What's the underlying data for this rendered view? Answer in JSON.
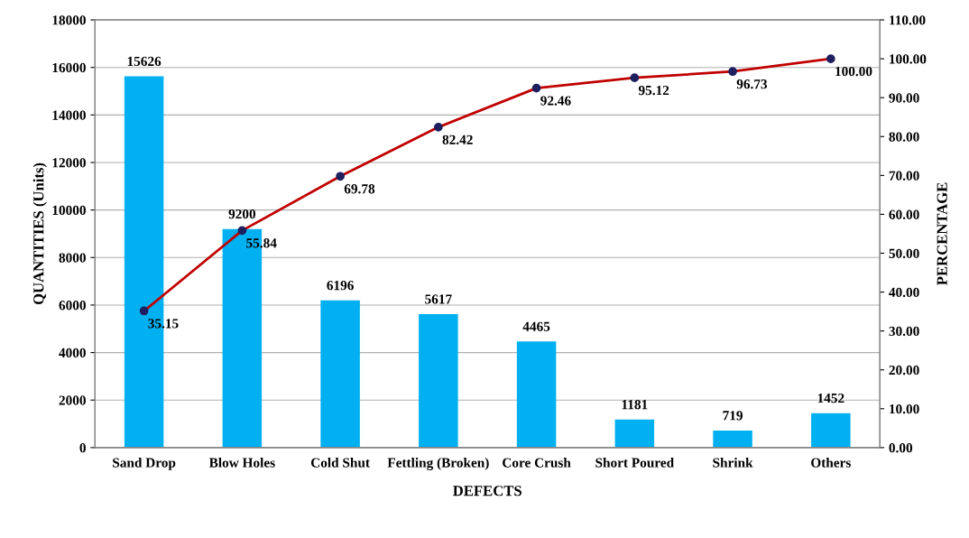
{
  "chart_data": {
    "type": "bar",
    "xlabel": "DEFECTS",
    "ylabel": "QUANTITIES (Units)",
    "y2label": "PERCENTAGE",
    "categories": [
      "Sand Drop",
      "Blow Holes",
      "Cold Shut",
      "Fettling (Broken)",
      "Core Crush",
      "Short Poured",
      "Shrink",
      "Others"
    ],
    "series": [
      {
        "color": "#00b0f0",
        "values": [
          15626,
          9200,
          6196,
          5617,
          4465,
          1181,
          719,
          1452
        ],
        "value_labels": [
          "15626",
          "9200",
          "6196",
          "5617",
          "4465",
          "1181",
          "719",
          "1452"
        ]
      },
      {
        "type": "line",
        "axis": "y2",
        "color": "#c00000",
        "marker": "circle",
        "values": [
          35.15,
          55.84,
          69.78,
          82.42,
          92.46,
          95.12,
          96.73,
          100.0
        ],
        "value_labels": [
          "35.15",
          "55.84",
          "69.78",
          "82.42",
          "92.46",
          "95.12",
          "96.73",
          "100.00"
        ]
      }
    ],
    "ylim": [
      0,
      18000
    ],
    "yticks": [
      0,
      2000,
      4000,
      6000,
      8000,
      10000,
      12000,
      14000,
      16000,
      18000
    ],
    "y2lim": [
      0,
      110
    ],
    "y2ticks": [
      {
        "value": 0,
        "label": "0.00"
      },
      {
        "value": 10,
        "label": "10.00"
      },
      {
        "value": 20,
        "label": "20.00"
      },
      {
        "value": 30,
        "label": "30.00"
      },
      {
        "value": 40,
        "label": "40.00"
      },
      {
        "value": 50,
        "label": "50.00"
      },
      {
        "value": 60,
        "label": "60.00"
      },
      {
        "value": 70,
        "label": "70.00"
      },
      {
        "value": 80,
        "label": "80.00"
      },
      {
        "value": 90,
        "label": "90.00"
      },
      {
        "value": 100,
        "label": "100.00"
      },
      {
        "value": 110,
        "label": "110.00"
      }
    ],
    "grid": "y"
  }
}
